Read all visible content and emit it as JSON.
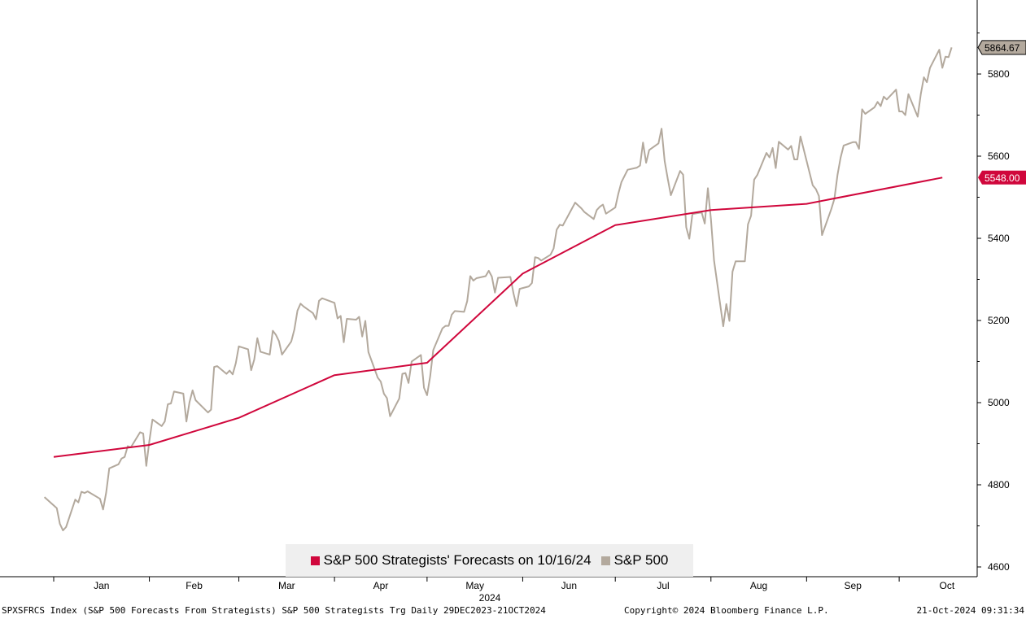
{
  "chart_data": {
    "type": "line",
    "x_ticks": [
      "Jan",
      "Feb",
      "Mar",
      "Apr",
      "May",
      "Jun",
      "Jul",
      "Aug",
      "Sep",
      "Oct"
    ],
    "year_label": "2024",
    "y_ticks": [
      4600,
      4800,
      5000,
      5200,
      5400,
      5600,
      5800
    ],
    "ylim": [
      4580,
      5990
    ],
    "series": [
      {
        "name": "S&P 500 Strategists' Forecasts on 10/16/24",
        "color": "#d0073c",
        "last_value_label": "5548.00",
        "points": [
          [
            "2024-01-01",
            4868
          ],
          [
            "2024-02-01",
            4897
          ],
          [
            "2024-03-01",
            4963
          ],
          [
            "2024-04-01",
            5067
          ],
          [
            "2024-05-01",
            5097
          ],
          [
            "2024-06-01",
            5314
          ],
          [
            "2024-07-01",
            5432
          ],
          [
            "2024-08-01",
            5469
          ],
          [
            "2024-09-01",
            5484
          ],
          [
            "2024-10-15",
            5548
          ]
        ]
      },
      {
        "name": "S&P 500",
        "color": "#b3a99d",
        "last_value_label": "5864.67",
        "points": [
          [
            "2023-12-29",
            4770
          ],
          [
            "2024-01-02",
            4743
          ],
          [
            "2024-01-03",
            4705
          ],
          [
            "2024-01-04",
            4689
          ],
          [
            "2024-01-05",
            4697
          ],
          [
            "2024-01-08",
            4764
          ],
          [
            "2024-01-09",
            4757
          ],
          [
            "2024-01-10",
            4783
          ],
          [
            "2024-01-11",
            4780
          ],
          [
            "2024-01-12",
            4784
          ],
          [
            "2024-01-16",
            4766
          ],
          [
            "2024-01-17",
            4740
          ],
          [
            "2024-01-18",
            4781
          ],
          [
            "2024-01-19",
            4840
          ],
          [
            "2024-01-22",
            4850
          ],
          [
            "2024-01-23",
            4864
          ],
          [
            "2024-01-24",
            4868
          ],
          [
            "2024-01-25",
            4894
          ],
          [
            "2024-01-26",
            4891
          ],
          [
            "2024-01-29",
            4928
          ],
          [
            "2024-01-30",
            4925
          ],
          [
            "2024-01-31",
            4846
          ],
          [
            "2024-02-01",
            4907
          ],
          [
            "2024-02-02",
            4959
          ],
          [
            "2024-02-05",
            4943
          ],
          [
            "2024-02-06",
            4954
          ],
          [
            "2024-02-07",
            4996
          ],
          [
            "2024-02-08",
            4998
          ],
          [
            "2024-02-09",
            5027
          ],
          [
            "2024-02-12",
            5022
          ],
          [
            "2024-02-13",
            4954
          ],
          [
            "2024-02-14",
            5001
          ],
          [
            "2024-02-15",
            5030
          ],
          [
            "2024-02-16",
            5006
          ],
          [
            "2024-02-20",
            4976
          ],
          [
            "2024-02-21",
            4983
          ],
          [
            "2024-02-22",
            5087
          ],
          [
            "2024-02-23",
            5089
          ],
          [
            "2024-02-26",
            5070
          ],
          [
            "2024-02-27",
            5078
          ],
          [
            "2024-02-28",
            5069
          ],
          [
            "2024-02-29",
            5096
          ],
          [
            "2024-03-01",
            5137
          ],
          [
            "2024-03-04",
            5130
          ],
          [
            "2024-03-05",
            5079
          ],
          [
            "2024-03-06",
            5105
          ],
          [
            "2024-03-07",
            5157
          ],
          [
            "2024-03-08",
            5124
          ],
          [
            "2024-03-11",
            5117
          ],
          [
            "2024-03-12",
            5175
          ],
          [
            "2024-03-13",
            5165
          ],
          [
            "2024-03-14",
            5150
          ],
          [
            "2024-03-15",
            5117
          ],
          [
            "2024-03-18",
            5149
          ],
          [
            "2024-03-19",
            5178
          ],
          [
            "2024-03-20",
            5224
          ],
          [
            "2024-03-21",
            5241
          ],
          [
            "2024-03-22",
            5234
          ],
          [
            "2024-03-25",
            5218
          ],
          [
            "2024-03-26",
            5203
          ],
          [
            "2024-03-27",
            5248
          ],
          [
            "2024-03-28",
            5254
          ],
          [
            "2024-04-01",
            5243
          ],
          [
            "2024-04-02",
            5205
          ],
          [
            "2024-04-03",
            5211
          ],
          [
            "2024-04-04",
            5147
          ],
          [
            "2024-04-05",
            5204
          ],
          [
            "2024-04-08",
            5202
          ],
          [
            "2024-04-09",
            5209
          ],
          [
            "2024-04-10",
            5161
          ],
          [
            "2024-04-11",
            5199
          ],
          [
            "2024-04-12",
            5123
          ],
          [
            "2024-04-15",
            5061
          ],
          [
            "2024-04-16",
            5051
          ],
          [
            "2024-04-17",
            5022
          ],
          [
            "2024-04-18",
            5011
          ],
          [
            "2024-04-19",
            4967
          ],
          [
            "2024-04-22",
            5010
          ],
          [
            "2024-04-23",
            5070
          ],
          [
            "2024-04-24",
            5072
          ],
          [
            "2024-04-25",
            5048
          ],
          [
            "2024-04-26",
            5100
          ],
          [
            "2024-04-29",
            5116
          ],
          [
            "2024-04-30",
            5036
          ],
          [
            "2024-05-01",
            5018
          ],
          [
            "2024-05-02",
            5064
          ],
          [
            "2024-05-03",
            5128
          ],
          [
            "2024-05-06",
            5181
          ],
          [
            "2024-05-07",
            5187
          ],
          [
            "2024-05-08",
            5187
          ],
          [
            "2024-05-09",
            5214
          ],
          [
            "2024-05-10",
            5223
          ],
          [
            "2024-05-13",
            5221
          ],
          [
            "2024-05-14",
            5247
          ],
          [
            "2024-05-15",
            5308
          ],
          [
            "2024-05-16",
            5297
          ],
          [
            "2024-05-17",
            5303
          ],
          [
            "2024-05-20",
            5308
          ],
          [
            "2024-05-21",
            5321
          ],
          [
            "2024-05-22",
            5307
          ],
          [
            "2024-05-23",
            5268
          ],
          [
            "2024-05-24",
            5304
          ],
          [
            "2024-05-28",
            5306
          ],
          [
            "2024-05-29",
            5266
          ],
          [
            "2024-05-30",
            5235
          ],
          [
            "2024-05-31",
            5277
          ],
          [
            "2024-06-03",
            5283
          ],
          [
            "2024-06-04",
            5291
          ],
          [
            "2024-06-05",
            5354
          ],
          [
            "2024-06-06",
            5352
          ],
          [
            "2024-06-07",
            5346
          ],
          [
            "2024-06-10",
            5360
          ],
          [
            "2024-06-11",
            5375
          ],
          [
            "2024-06-12",
            5421
          ],
          [
            "2024-06-13",
            5433
          ],
          [
            "2024-06-14",
            5431
          ],
          [
            "2024-06-17",
            5473
          ],
          [
            "2024-06-18",
            5487
          ],
          [
            "2024-06-20",
            5473
          ],
          [
            "2024-06-21",
            5464
          ],
          [
            "2024-06-24",
            5447
          ],
          [
            "2024-06-25",
            5469
          ],
          [
            "2024-06-26",
            5477
          ],
          [
            "2024-06-27",
            5482
          ],
          [
            "2024-06-28",
            5460
          ],
          [
            "2024-07-01",
            5475
          ],
          [
            "2024-07-02",
            5509
          ],
          [
            "2024-07-03",
            5537
          ],
          [
            "2024-07-05",
            5567
          ],
          [
            "2024-07-08",
            5572
          ],
          [
            "2024-07-09",
            5577
          ],
          [
            "2024-07-10",
            5633
          ],
          [
            "2024-07-11",
            5584
          ],
          [
            "2024-07-12",
            5615
          ],
          [
            "2024-07-15",
            5631
          ],
          [
            "2024-07-16",
            5667
          ],
          [
            "2024-07-17",
            5588
          ],
          [
            "2024-07-18",
            5545
          ],
          [
            "2024-07-19",
            5505
          ],
          [
            "2024-07-22",
            5564
          ],
          [
            "2024-07-23",
            5555
          ],
          [
            "2024-07-24",
            5427
          ],
          [
            "2024-07-25",
            5399
          ],
          [
            "2024-07-26",
            5459
          ],
          [
            "2024-07-29",
            5463
          ],
          [
            "2024-07-30",
            5436
          ],
          [
            "2024-07-31",
            5522
          ],
          [
            "2024-08-01",
            5446
          ],
          [
            "2024-08-02",
            5346
          ],
          [
            "2024-08-05",
            5186
          ],
          [
            "2024-08-06",
            5240
          ],
          [
            "2024-08-07",
            5199
          ],
          [
            "2024-08-08",
            5319
          ],
          [
            "2024-08-09",
            5344
          ],
          [
            "2024-08-12",
            5344
          ],
          [
            "2024-08-13",
            5434
          ],
          [
            "2024-08-14",
            5455
          ],
          [
            "2024-08-15",
            5543
          ],
          [
            "2024-08-16",
            5554
          ],
          [
            "2024-08-19",
            5608
          ],
          [
            "2024-08-20",
            5597
          ],
          [
            "2024-08-21",
            5620
          ],
          [
            "2024-08-22",
            5571
          ],
          [
            "2024-08-23",
            5635
          ],
          [
            "2024-08-26",
            5616
          ],
          [
            "2024-08-27",
            5625
          ],
          [
            "2024-08-28",
            5592
          ],
          [
            "2024-08-29",
            5592
          ],
          [
            "2024-08-30",
            5648
          ],
          [
            "2024-09-03",
            5529
          ],
          [
            "2024-09-04",
            5520
          ],
          [
            "2024-09-05",
            5503
          ],
          [
            "2024-09-06",
            5408
          ],
          [
            "2024-09-09",
            5471
          ],
          [
            "2024-09-10",
            5496
          ],
          [
            "2024-09-11",
            5554
          ],
          [
            "2024-09-12",
            5596
          ],
          [
            "2024-09-13",
            5626
          ],
          [
            "2024-09-16",
            5634
          ],
          [
            "2024-09-17",
            5634
          ],
          [
            "2024-09-18",
            5618
          ],
          [
            "2024-09-19",
            5714
          ],
          [
            "2024-09-20",
            5703
          ],
          [
            "2024-09-23",
            5719
          ],
          [
            "2024-09-24",
            5732
          ],
          [
            "2024-09-25",
            5722
          ],
          [
            "2024-09-26",
            5745
          ],
          [
            "2024-09-27",
            5738
          ],
          [
            "2024-09-30",
            5762
          ],
          [
            "2024-10-01",
            5709
          ],
          [
            "2024-10-02",
            5709
          ],
          [
            "2024-10-03",
            5700
          ],
          [
            "2024-10-04",
            5751
          ],
          [
            "2024-10-07",
            5696
          ],
          [
            "2024-10-08",
            5751
          ],
          [
            "2024-10-09",
            5792
          ],
          [
            "2024-10-10",
            5780
          ],
          [
            "2024-10-11",
            5815
          ],
          [
            "2024-10-14",
            5859
          ],
          [
            "2024-10-15",
            5815
          ],
          [
            "2024-10-16",
            5842
          ],
          [
            "2024-10-17",
            5841
          ],
          [
            "2024-10-18",
            5864.67
          ]
        ]
      }
    ]
  },
  "footer": {
    "left": "SPXSFRCS Index (S&P 500 Forecasts From Strategists) S&P 500 Strategists Trg  Daily 29DEC2023-21OCT2024",
    "center": "Copyright© 2024 Bloomberg Finance L.P.",
    "right": "21-Oct-2024 09:31:34"
  }
}
